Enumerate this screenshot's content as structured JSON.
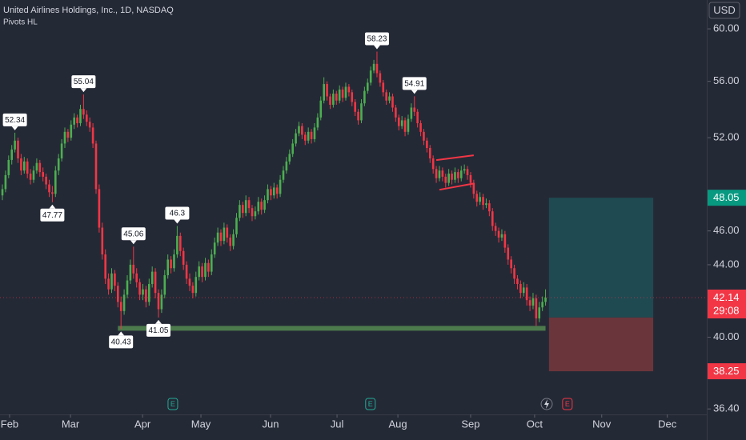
{
  "chart_data": {
    "type": "candlestick",
    "title": "United Airlines Holdings, Inc., 1D, NASDAQ",
    "indicator": "Pivots HL",
    "currency": "USD",
    "up_color": "#4caf50",
    "down_color": "#f23645",
    "log_scale": true,
    "grid": false,
    "ylim": [
      36.14,
      62.32
    ],
    "yticks": [
      {
        "value": 60,
        "label": "60.00"
      },
      {
        "value": 56,
        "label": "56.00"
      },
      {
        "value": 52,
        "label": "52.00"
      },
      {
        "value": 46,
        "label": "46.00"
      },
      {
        "value": 44,
        "label": "44.00"
      },
      {
        "value": 40,
        "label": "40.00"
      },
      {
        "value": 36.4,
        "label": "36.40"
      }
    ],
    "xlim": [
      -0.77,
      225.4
    ],
    "xticks": [
      {
        "value": 2.3,
        "label": "Feb"
      },
      {
        "value": 21.8,
        "label": "Mar"
      },
      {
        "value": 44.9,
        "label": "Apr"
      },
      {
        "value": 63.6,
        "label": "May"
      },
      {
        "value": 85.9,
        "label": "Jun"
      },
      {
        "value": 107.2,
        "label": "Jul"
      },
      {
        "value": 126.7,
        "label": "Aug"
      },
      {
        "value": 150,
        "label": "Sep"
      },
      {
        "value": 170.5,
        "label": "Oct"
      },
      {
        "value": 192,
        "label": "Nov"
      },
      {
        "value": 213,
        "label": "Dec"
      }
    ],
    "ohlc": [
      [
        48.2,
        48.9,
        47.9,
        48.6
      ],
      [
        48.6,
        49.8,
        48.4,
        49.5
      ],
      [
        49.5,
        50.8,
        49.3,
        50.5
      ],
      [
        50.5,
        51.5,
        50.2,
        51.2
      ],
      [
        51.2,
        52.34,
        51.0,
        51.8
      ],
      [
        51.8,
        52.0,
        50.3,
        50.6
      ],
      [
        50.6,
        50.9,
        49.5,
        49.8
      ],
      [
        49.8,
        50.7,
        49.6,
        50.4
      ],
      [
        50.4,
        50.6,
        49.3,
        49.6
      ],
      [
        49.6,
        49.9,
        48.9,
        49.2
      ],
      [
        49.2,
        50.1,
        49.0,
        49.8
      ],
      [
        49.8,
        50.6,
        49.6,
        50.3
      ],
      [
        50.3,
        50.5,
        49.4,
        49.7
      ],
      [
        49.7,
        50.0,
        49.1,
        49.4
      ],
      [
        49.4,
        49.6,
        48.6,
        48.9
      ],
      [
        48.9,
        49.2,
        48.1,
        48.4
      ],
      [
        48.4,
        48.8,
        47.77,
        48.3
      ],
      [
        48.3,
        50.1,
        48.1,
        49.8
      ],
      [
        49.8,
        50.9,
        49.5,
        50.6
      ],
      [
        50.6,
        51.9,
        50.4,
        51.6
      ],
      [
        51.6,
        52.7,
        51.3,
        52.4
      ],
      [
        52.4,
        52.6,
        51.7,
        52.0
      ],
      [
        52.0,
        53.2,
        51.8,
        52.9
      ],
      [
        52.9,
        53.7,
        52.6,
        53.4
      ],
      [
        53.4,
        53.6,
        52.7,
        53.0
      ],
      [
        53.0,
        54.3,
        52.8,
        54.0
      ],
      [
        54.0,
        55.04,
        53.3,
        53.6
      ],
      [
        53.6,
        53.9,
        52.8,
        53.1
      ],
      [
        53.1,
        53.4,
        52.4,
        52.7
      ],
      [
        52.7,
        53.0,
        51.3,
        51.6
      ],
      [
        51.6,
        51.8,
        48.3,
        48.6
      ],
      [
        48.6,
        48.9,
        45.9,
        46.2
      ],
      [
        46.2,
        46.5,
        44.3,
        44.6
      ],
      [
        44.6,
        44.9,
        42.9,
        43.2
      ],
      [
        43.2,
        43.5,
        42.3,
        42.6
      ],
      [
        42.6,
        43.8,
        42.4,
        43.5
      ],
      [
        43.5,
        43.7,
        42.5,
        42.8
      ],
      [
        42.8,
        43.0,
        41.6,
        41.9
      ],
      [
        41.9,
        42.2,
        40.43,
        41.4
      ],
      [
        41.4,
        42.6,
        41.2,
        42.3
      ],
      [
        42.3,
        43.4,
        42.1,
        43.1
      ],
      [
        43.1,
        44.3,
        42.9,
        44.0
      ],
      [
        44.0,
        45.06,
        43.2,
        43.5
      ],
      [
        43.5,
        43.8,
        42.7,
        43.0
      ],
      [
        43.0,
        43.2,
        42.0,
        42.3
      ],
      [
        42.3,
        42.9,
        42.0,
        42.6
      ],
      [
        42.6,
        42.8,
        41.6,
        41.9
      ],
      [
        41.9,
        43.2,
        41.7,
        42.9
      ],
      [
        42.9,
        43.9,
        42.7,
        43.6
      ],
      [
        43.6,
        43.8,
        42.1,
        42.4
      ],
      [
        42.4,
        42.6,
        41.05,
        41.5
      ],
      [
        41.5,
        42.6,
        41.3,
        42.3
      ],
      [
        42.3,
        43.7,
        42.1,
        43.4
      ],
      [
        43.4,
        44.6,
        43.2,
        44.3
      ],
      [
        44.3,
        44.5,
        43.5,
        43.8
      ],
      [
        43.8,
        44.9,
        43.6,
        44.6
      ],
      [
        44.6,
        46.3,
        44.4,
        45.7
      ],
      [
        45.7,
        45.9,
        44.5,
        44.8
      ],
      [
        44.8,
        45.0,
        43.7,
        44.0
      ],
      [
        44.0,
        44.2,
        42.9,
        43.2
      ],
      [
        43.2,
        43.5,
        42.5,
        42.8
      ],
      [
        42.8,
        43.0,
        42.1,
        42.4
      ],
      [
        42.4,
        43.6,
        42.2,
        43.3
      ],
      [
        43.3,
        44.2,
        43.1,
        43.9
      ],
      [
        43.9,
        44.1,
        43.0,
        43.3
      ],
      [
        43.3,
        44.4,
        43.1,
        44.1
      ],
      [
        44.1,
        44.3,
        43.3,
        43.6
      ],
      [
        43.6,
        44.9,
        43.4,
        44.6
      ],
      [
        44.6,
        45.6,
        44.4,
        45.3
      ],
      [
        45.3,
        46.2,
        45.1,
        45.9
      ],
      [
        45.9,
        46.1,
        45.1,
        45.4
      ],
      [
        45.4,
        46.5,
        45.2,
        46.2
      ],
      [
        46.2,
        46.4,
        45.3,
        45.6
      ],
      [
        45.6,
        45.8,
        44.8,
        45.1
      ],
      [
        45.1,
        46.1,
        44.9,
        45.8
      ],
      [
        45.8,
        47.1,
        45.6,
        46.8
      ],
      [
        46.8,
        47.9,
        46.6,
        47.6
      ],
      [
        47.6,
        47.8,
        46.8,
        47.1
      ],
      [
        47.1,
        48.2,
        46.9,
        47.9
      ],
      [
        47.9,
        48.1,
        47.1,
        47.4
      ],
      [
        47.4,
        47.6,
        46.6,
        46.9
      ],
      [
        46.9,
        47.5,
        46.7,
        47.2
      ],
      [
        47.2,
        48.1,
        47.0,
        47.8
      ],
      [
        47.8,
        48.0,
        47.0,
        47.3
      ],
      [
        47.3,
        48.2,
        47.1,
        47.9
      ],
      [
        47.9,
        48.9,
        47.7,
        48.6
      ],
      [
        48.6,
        48.8,
        47.9,
        48.2
      ],
      [
        48.2,
        49.0,
        48.0,
        48.7
      ],
      [
        48.7,
        48.9,
        48.0,
        48.3
      ],
      [
        48.3,
        49.5,
        48.1,
        49.2
      ],
      [
        49.2,
        50.1,
        49.0,
        49.8
      ],
      [
        49.8,
        50.7,
        49.6,
        50.4
      ],
      [
        50.4,
        51.2,
        50.2,
        50.9
      ],
      [
        50.9,
        51.9,
        50.7,
        51.6
      ],
      [
        51.6,
        52.6,
        51.4,
        52.3
      ],
      [
        52.3,
        53.1,
        52.1,
        52.8
      ],
      [
        52.8,
        53.0,
        51.9,
        52.2
      ],
      [
        52.2,
        52.4,
        51.5,
        51.8
      ],
      [
        51.8,
        52.7,
        51.6,
        52.4
      ],
      [
        52.4,
        52.6,
        51.6,
        51.9
      ],
      [
        51.9,
        53.0,
        51.7,
        52.7
      ],
      [
        52.7,
        53.7,
        52.5,
        53.4
      ],
      [
        53.4,
        54.9,
        53.2,
        54.6
      ],
      [
        54.6,
        56.3,
        54.4,
        55.8
      ],
      [
        55.8,
        56.0,
        54.6,
        54.9
      ],
      [
        54.9,
        55.1,
        54.0,
        54.3
      ],
      [
        54.3,
        55.4,
        54.1,
        55.1
      ],
      [
        55.1,
        55.3,
        54.3,
        54.6
      ],
      [
        54.6,
        55.7,
        54.4,
        55.4
      ],
      [
        55.4,
        55.6,
        54.5,
        54.8
      ],
      [
        54.8,
        55.9,
        54.6,
        55.6
      ],
      [
        55.6,
        55.8,
        54.9,
        55.2
      ],
      [
        55.2,
        55.4,
        54.2,
        54.5
      ],
      [
        54.5,
        54.7,
        53.5,
        53.8
      ],
      [
        53.8,
        54.0,
        52.9,
        53.2
      ],
      [
        53.2,
        54.7,
        53.0,
        54.4
      ],
      [
        54.4,
        55.6,
        54.2,
        55.3
      ],
      [
        55.3,
        56.2,
        55.1,
        55.9
      ],
      [
        55.9,
        57.1,
        55.7,
        56.8
      ],
      [
        56.8,
        57.6,
        56.6,
        57.3
      ],
      [
        57.3,
        58.23,
        56.3,
        56.6
      ],
      [
        56.6,
        56.8,
        55.6,
        55.9
      ],
      [
        55.9,
        56.1,
        54.9,
        55.2
      ],
      [
        55.2,
        55.4,
        54.3,
        54.6
      ],
      [
        54.6,
        55.2,
        54.4,
        54.9
      ],
      [
        54.9,
        55.1,
        53.8,
        54.1
      ],
      [
        54.1,
        54.3,
        53.1,
        53.4
      ],
      [
        53.4,
        53.6,
        52.5,
        52.8
      ],
      [
        52.8,
        53.5,
        52.6,
        53.2
      ],
      [
        53.2,
        53.4,
        52.1,
        52.4
      ],
      [
        52.4,
        53.6,
        52.2,
        53.3
      ],
      [
        53.3,
        54.4,
        53.1,
        54.1
      ],
      [
        54.1,
        54.91,
        53.5,
        53.8
      ],
      [
        53.8,
        54.0,
        52.7,
        53.0
      ],
      [
        53.0,
        53.2,
        52.1,
        52.4
      ],
      [
        52.4,
        52.6,
        51.5,
        51.8
      ],
      [
        51.8,
        52.0,
        51.0,
        51.3
      ],
      [
        51.3,
        51.5,
        50.3,
        50.6
      ],
      [
        50.6,
        50.8,
        49.6,
        49.9
      ],
      [
        49.9,
        50.1,
        49.0,
        49.3
      ],
      [
        49.3,
        50.1,
        49.1,
        49.8
      ],
      [
        49.8,
        50.0,
        49.1,
        49.4
      ],
      [
        49.4,
        49.6,
        48.7,
        49.0
      ],
      [
        49.0,
        49.9,
        48.8,
        49.6
      ],
      [
        49.6,
        49.8,
        48.9,
        49.2
      ],
      [
        49.2,
        50.0,
        49.0,
        49.7
      ],
      [
        49.7,
        49.9,
        49.0,
        49.3
      ],
      [
        49.3,
        50.1,
        49.1,
        49.8
      ],
      [
        49.8,
        50.2,
        49.6,
        49.9
      ],
      [
        49.9,
        50.1,
        49.2,
        49.5
      ],
      [
        49.5,
        49.7,
        48.7,
        49.0
      ],
      [
        49.0,
        49.2,
        48.0,
        48.3
      ],
      [
        48.3,
        48.5,
        47.5,
        47.8
      ],
      [
        47.8,
        48.4,
        47.6,
        48.1
      ],
      [
        48.1,
        48.3,
        47.3,
        47.6
      ],
      [
        47.6,
        48.0,
        47.4,
        47.7
      ],
      [
        47.7,
        47.9,
        46.9,
        47.2
      ],
      [
        47.2,
        47.4,
        46.0,
        46.3
      ],
      [
        46.3,
        46.5,
        45.7,
        46.0
      ],
      [
        46.0,
        46.2,
        45.3,
        45.6
      ],
      [
        45.6,
        46.1,
        45.4,
        45.8
      ],
      [
        45.8,
        46.0,
        44.7,
        45.0
      ],
      [
        45.0,
        45.2,
        44.0,
        44.3
      ],
      [
        44.3,
        44.5,
        43.5,
        43.8
      ],
      [
        43.8,
        44.0,
        42.9,
        43.2
      ],
      [
        43.2,
        43.4,
        42.6,
        42.9
      ],
      [
        42.9,
        43.1,
        42.1,
        42.4
      ],
      [
        42.4,
        43.0,
        42.2,
        42.7
      ],
      [
        42.7,
        42.9,
        41.7,
        42.0
      ],
      [
        42.0,
        42.2,
        41.4,
        41.7
      ],
      [
        41.7,
        42.4,
        41.5,
        42.1
      ],
      [
        42.1,
        42.3,
        40.6,
        41.0
      ],
      [
        41.0,
        41.9,
        40.8,
        41.6
      ],
      [
        41.6,
        42.2,
        41.4,
        41.9
      ],
      [
        41.9,
        42.6,
        41.7,
        42.14
      ]
    ],
    "pivots": [
      {
        "x": 4,
        "value": 52.34,
        "kind": "high"
      },
      {
        "x": 16,
        "value": 47.77,
        "kind": "low"
      },
      {
        "x": 26,
        "value": 55.04,
        "kind": "high"
      },
      {
        "x": 38,
        "value": 40.43,
        "kind": "low"
      },
      {
        "x": 42,
        "value": 45.06,
        "kind": "high"
      },
      {
        "x": 50,
        "value": 41.05,
        "kind": "low"
      },
      {
        "x": 56,
        "value": 46.3,
        "kind": "high"
      },
      {
        "x": 120,
        "value": 58.23,
        "kind": "high"
      },
      {
        "x": 132,
        "value": 54.91,
        "kind": "high"
      }
    ],
    "support": {
      "value": 40.47,
      "x": [
        37,
        174
      ],
      "color": "#4c7a4c"
    },
    "channel": {
      "color": "#f23645",
      "lines": [
        {
          "x": [
            139,
            151
          ],
          "values": [
            50.49,
            50.81
          ]
        },
        {
          "x": [
            140,
            151
          ],
          "values": [
            48.56,
            48.96
          ]
        }
      ]
    },
    "position": {
      "x": [
        175.1,
        208.5
      ],
      "target": 48.05,
      "entry": 41.05,
      "stop": 38.25,
      "profit_color": "#1f4a52",
      "loss_color": "#6b353c",
      "target_color": "#089981",
      "stop_color": "#f23645"
    },
    "last_price": {
      "value": 42.14,
      "countdown": "29:08",
      "color": "#f23645"
    },
    "events": [
      {
        "x": 54.6,
        "label": "E",
        "color": "#22ab94"
      },
      {
        "x": 117.9,
        "label": "E",
        "color": "#22ab94"
      },
      {
        "x": 181,
        "label": "E",
        "color": "#f23645"
      }
    ]
  }
}
